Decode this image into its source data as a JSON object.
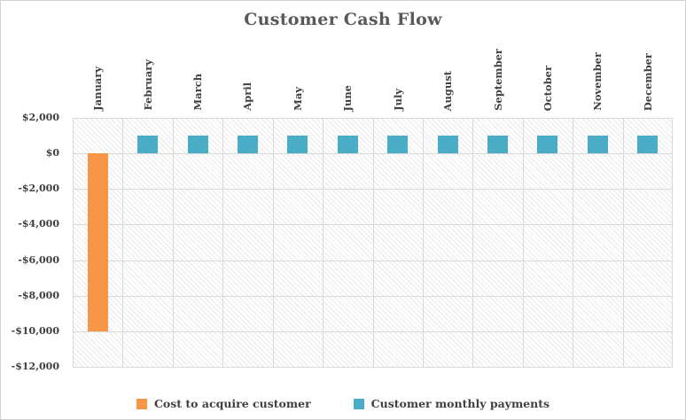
{
  "title": "Customer Cash Flow",
  "chart_data": {
    "type": "bar",
    "title": "Customer Cash Flow",
    "categories": [
      "January",
      "February",
      "March",
      "April",
      "May",
      "June",
      "July",
      "August",
      "September",
      "October",
      "November",
      "December"
    ],
    "series": [
      {
        "name": "Cost to acquire customer",
        "color": "#F79646",
        "values": [
          -10000,
          0,
          0,
          0,
          0,
          0,
          0,
          0,
          0,
          0,
          0,
          0
        ]
      },
      {
        "name": "Customer monthly payments",
        "color": "#4BACC6",
        "values": [
          0,
          1000,
          1000,
          1000,
          1000,
          1000,
          1000,
          1000,
          1000,
          1000,
          1000,
          1000
        ]
      }
    ],
    "y_axis": {
      "min": -12000,
      "max": 2000,
      "tick_step": 2000,
      "ticks": [
        {
          "value": 2000,
          "label": "$2,000"
        },
        {
          "value": 0,
          "label": "$0"
        },
        {
          "value": -2000,
          "label": "-$2,000"
        },
        {
          "value": -4000,
          "label": "-$4,000"
        },
        {
          "value": -6000,
          "label": "-$6,000"
        },
        {
          "value": -8000,
          "label": "-$8,000"
        },
        {
          "value": -10000,
          "label": "-$10,000"
        },
        {
          "value": -12000,
          "label": "-$12,000"
        }
      ]
    },
    "grid": true,
    "legend_position": "bottom",
    "plot_area_fill": "diagonal-hatch-pattern",
    "x_label_rotation": "vertical-bottom-to-top",
    "styles": {
      "background": "#FFFFFF",
      "title_color": "#595959",
      "axis_text_color": "#404040",
      "gridline_color": "#D9D9D9",
      "hatch_line_color": "#E8E8E8",
      "chart_border_color": "#D2D2D2"
    }
  }
}
